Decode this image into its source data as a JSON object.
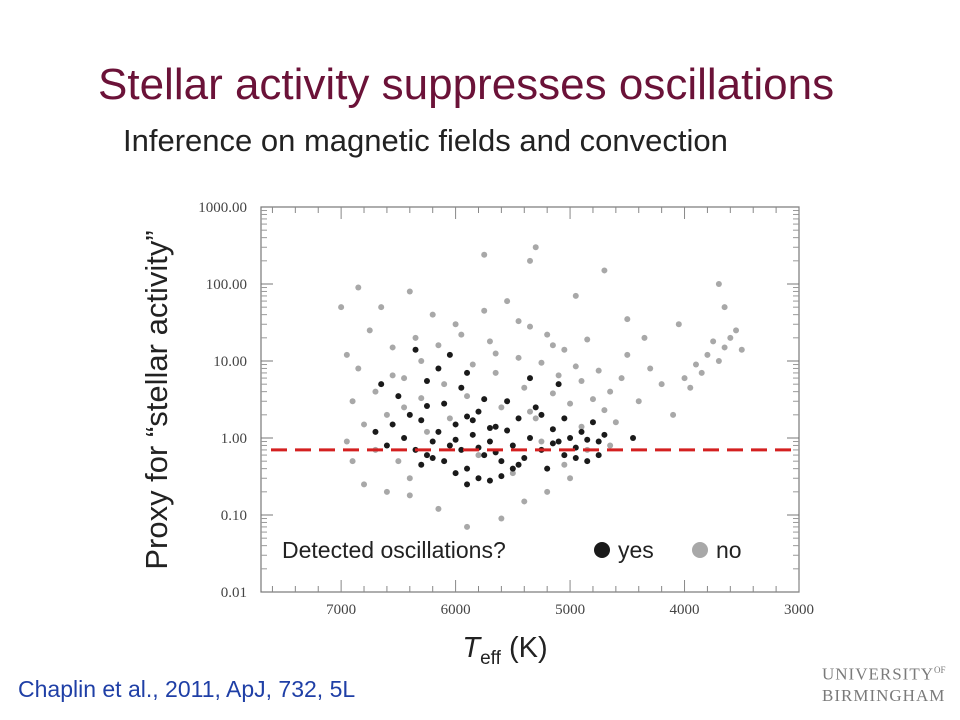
{
  "slide": {
    "title": "Stellar activity suppresses oscillations",
    "subtitle": "Inference on magnetic fields and convection",
    "citation": "Chaplin et al., 2011, ApJ, 732, 5L",
    "logo_line1": "UNIVERSITY",
    "logo_of": "OF",
    "logo_line2": "BIRMINGHAM"
  },
  "colors": {
    "title": "#6b1238",
    "citation": "#1f3fa6",
    "detected": "#1a1a1a",
    "not_detected": "#a8a8a8",
    "threshold_line": "#d42020"
  },
  "chart_data": {
    "type": "scatter",
    "title": "",
    "xlabel_main": "T",
    "xlabel_sub": "eff",
    "xlabel_unit": " (K)",
    "ylabel": "Proxy for “stellar activity”",
    "x_reversed": true,
    "xlim": [
      7700,
      3000
    ],
    "ylim": [
      0.01,
      1000
    ],
    "y_scale": "log",
    "x_ticks": [
      7000,
      6000,
      5000,
      4000,
      3000
    ],
    "x_tick_labels": [
      "7000",
      "6000",
      "5000",
      "4000",
      "3000"
    ],
    "y_ticks": [
      0.01,
      0.1,
      1,
      10,
      100,
      1000
    ],
    "y_tick_labels": [
      "0.01",
      "0.10",
      "1.00",
      "10.00",
      "100.00",
      "1000.00"
    ],
    "threshold": {
      "y": 0.7,
      "style": "dashed"
    },
    "legend": {
      "prompt": "Detected oscillations?",
      "yes_label": "yes",
      "no_label": "no",
      "placement": "bottom"
    },
    "series": [
      {
        "name": "yes",
        "color": "#1a1a1a",
        "points": [
          [
            6300,
            0.45
          ],
          [
            6250,
            0.6
          ],
          [
            6200,
            0.9
          ],
          [
            6150,
            1.2
          ],
          [
            6100,
            0.5
          ],
          [
            6050,
            0.8
          ],
          [
            6000,
            1.5
          ],
          [
            5950,
            0.7
          ],
          [
            5900,
            0.4
          ],
          [
            5850,
            1.1
          ],
          [
            5800,
            2.2
          ],
          [
            5750,
            0.6
          ],
          [
            5700,
            0.9
          ],
          [
            5650,
            1.4
          ],
          [
            5600,
            0.5
          ],
          [
            5550,
            3.0
          ],
          [
            5500,
            0.8
          ],
          [
            5450,
            1.8
          ],
          [
            5400,
            0.55
          ],
          [
            5350,
            1.0
          ],
          [
            5300,
            2.5
          ],
          [
            5250,
            0.7
          ],
          [
            5200,
            0.4
          ],
          [
            5150,
            1.3
          ],
          [
            5100,
            0.9
          ],
          [
            5050,
            0.6
          ],
          [
            5000,
            1.0
          ],
          [
            4950,
            0.75
          ],
          [
            4900,
            1.2
          ],
          [
            4850,
            0.5
          ],
          [
            4800,
            1.6
          ],
          [
            4750,
            0.9
          ],
          [
            4700,
            1.1
          ],
          [
            6450,
            1.0
          ],
          [
            6400,
            2.0
          ],
          [
            6350,
            0.7
          ],
          [
            6500,
            3.5
          ],
          [
            6550,
            1.5
          ],
          [
            6600,
            0.8
          ],
          [
            6650,
            5.0
          ],
          [
            6700,
            1.2
          ],
          [
            6150,
            8.0
          ],
          [
            6050,
            12.0
          ],
          [
            5900,
            0.25
          ],
          [
            5800,
            0.3
          ],
          [
            6000,
            0.35
          ],
          [
            5700,
            0.28
          ],
          [
            5600,
            0.32
          ],
          [
            5500,
            0.4
          ],
          [
            6200,
            0.55
          ],
          [
            6100,
            2.8
          ],
          [
            5950,
            4.5
          ],
          [
            5850,
            1.7
          ],
          [
            5750,
            3.2
          ],
          [
            5650,
            0.65
          ],
          [
            5550,
            1.25
          ],
          [
            5450,
            0.45
          ],
          [
            5350,
            6.0
          ],
          [
            5250,
            2.0
          ],
          [
            5150,
            0.85
          ],
          [
            5050,
            1.8
          ],
          [
            4950,
            0.55
          ],
          [
            4850,
            0.95
          ],
          [
            4750,
            0.6
          ],
          [
            6300,
            1.7
          ],
          [
            6250,
            2.6
          ],
          [
            6000,
            0.95
          ],
          [
            5900,
            1.9
          ],
          [
            5800,
            0.75
          ],
          [
            5700,
            1.35
          ],
          [
            4450,
            1.0
          ],
          [
            5900,
            7.0
          ],
          [
            6250,
            5.5
          ],
          [
            6350,
            14.0
          ],
          [
            5100,
            5.0
          ]
        ]
      },
      {
        "name": "no",
        "color": "#a8a8a8",
        "points": [
          [
            6900,
            3.0
          ],
          [
            6850,
            8.0
          ],
          [
            6800,
            1.5
          ],
          [
            6950,
            12.0
          ],
          [
            6750,
            25.0
          ],
          [
            6700,
            4.0
          ],
          [
            6650,
            50.0
          ],
          [
            6600,
            2.0
          ],
          [
            6550,
            15.0
          ],
          [
            6500,
            0.5
          ],
          [
            6450,
            6.0
          ],
          [
            6400,
            0.3
          ],
          [
            6350,
            20.0
          ],
          [
            6300,
            10.0
          ],
          [
            6200,
            40.0
          ],
          [
            6100,
            5.0
          ],
          [
            6000,
            30.0
          ],
          [
            5900,
            3.5
          ],
          [
            5850,
            9.0
          ],
          [
            5800,
            0.6
          ],
          [
            5750,
            240.0
          ],
          [
            5700,
            18.0
          ],
          [
            5650,
            7.0
          ],
          [
            5600,
            2.5
          ],
          [
            5550,
            60.0
          ],
          [
            5500,
            0.35
          ],
          [
            5450,
            11.0
          ],
          [
            5400,
            4.5
          ],
          [
            5350,
            28.0
          ],
          [
            5300,
            1.8
          ],
          [
            5250,
            9.5
          ],
          [
            5200,
            22.0
          ],
          [
            5150,
            3.8
          ],
          [
            5100,
            6.5
          ],
          [
            5050,
            14.0
          ],
          [
            5000,
            2.8
          ],
          [
            4950,
            8.5
          ],
          [
            4900,
            5.5
          ],
          [
            4850,
            19.0
          ],
          [
            4800,
            3.2
          ],
          [
            4750,
            7.5
          ],
          [
            4700,
            2.3
          ],
          [
            4650,
            4.0
          ],
          [
            4600,
            1.6
          ],
          [
            4500,
            12.0
          ],
          [
            4400,
            3.0
          ],
          [
            4300,
            8.0
          ],
          [
            4200,
            5.0
          ],
          [
            4100,
            2.0
          ],
          [
            4000,
            6.0
          ],
          [
            3950,
            4.5
          ],
          [
            3900,
            9.0
          ],
          [
            3850,
            7.0
          ],
          [
            3800,
            12.0
          ],
          [
            3750,
            18.0
          ],
          [
            3700,
            10.0
          ],
          [
            3650,
            15.0
          ],
          [
            3600,
            20.0
          ],
          [
            3550,
            25.0
          ],
          [
            3500,
            14.0
          ],
          [
            3700,
            100.0
          ],
          [
            3650,
            50.0
          ],
          [
            4050,
            30.0
          ],
          [
            4500,
            35.0
          ],
          [
            4700,
            150.0
          ],
          [
            4950,
            70.0
          ],
          [
            5300,
            300.0
          ],
          [
            5350,
            200.0
          ],
          [
            6400,
            80.0
          ],
          [
            6850,
            90.0
          ],
          [
            7000,
            50.0
          ],
          [
            6950,
            0.9
          ],
          [
            6900,
            0.5
          ],
          [
            6800,
            0.25
          ],
          [
            6600,
            0.2
          ],
          [
            6400,
            0.18
          ],
          [
            6150,
            0.12
          ],
          [
            5900,
            0.07
          ],
          [
            5600,
            0.09
          ],
          [
            5400,
            0.15
          ],
          [
            5200,
            0.2
          ],
          [
            5000,
            0.3
          ],
          [
            6450,
            2.5
          ],
          [
            6250,
            1.2
          ],
          [
            6050,
            1.8
          ],
          [
            5950,
            22.0
          ],
          [
            5750,
            45.0
          ],
          [
            5450,
            33.0
          ],
          [
            5250,
            0.9
          ],
          [
            5050,
            0.45
          ],
          [
            4850,
            0.7
          ],
          [
            4650,
            0.8
          ],
          [
            6700,
            0.7
          ],
          [
            6550,
            6.5
          ],
          [
            6300,
            3.3
          ],
          [
            6150,
            16.0
          ],
          [
            5650,
            12.5
          ],
          [
            5350,
            2.2
          ],
          [
            5150,
            16.0
          ],
          [
            4900,
            1.4
          ],
          [
            4550,
            6.0
          ],
          [
            4350,
            20.0
          ]
        ]
      }
    ]
  }
}
